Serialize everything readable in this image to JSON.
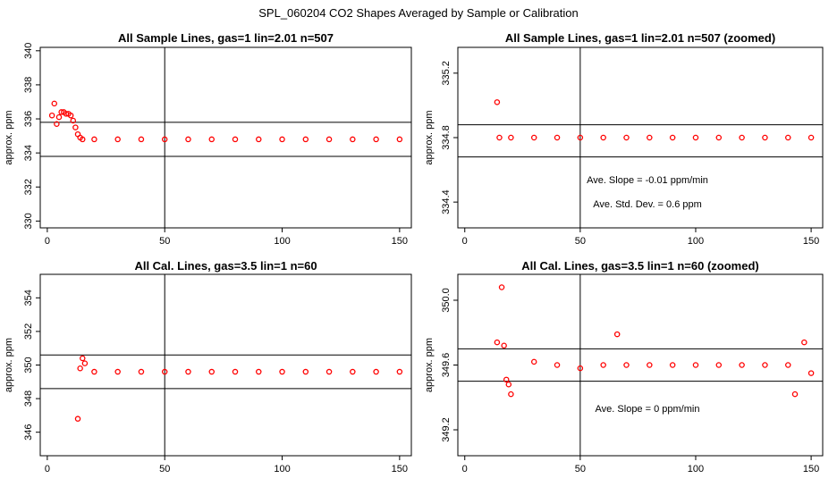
{
  "figure_title": "SPL_060204  CO2 Shapes Averaged by Sample or Calibration",
  "chart_data": [
    {
      "type": "scatter",
      "title": "All Sample Lines, gas=1 lin=2.01 n=507",
      "ylabel": "approx. ppm",
      "xlabel": "",
      "xlim": [
        -3,
        155
      ],
      "ylim": [
        329.6,
        340.2
      ],
      "xticks": [
        0,
        50,
        100,
        150
      ],
      "yticks": [
        330,
        332,
        334,
        336,
        338,
        340
      ],
      "vline": 50,
      "hlines": [
        333.8,
        335.8
      ],
      "series_color": "#ff0000",
      "x": [
        2,
        3,
        4,
        5,
        6,
        7,
        8,
        9,
        10,
        11,
        12,
        13,
        14,
        15,
        20,
        30,
        40,
        50,
        60,
        70,
        80,
        90,
        100,
        110,
        120,
        130,
        140,
        150
      ],
      "y": [
        336.2,
        336.9,
        335.7,
        336.1,
        336.4,
        336.4,
        336.3,
        336.3,
        336.2,
        335.9,
        335.5,
        335.1,
        334.9,
        334.8,
        334.8,
        334.8,
        334.8,
        334.8,
        334.8,
        334.8,
        334.8,
        334.8,
        334.8,
        334.8,
        334.8,
        334.8,
        334.8,
        334.8
      ],
      "annotations": []
    },
    {
      "type": "scatter",
      "title": "All Sample Lines, gas=1 lin=2.01 n=507 (zoomed)",
      "ylabel": "approx. ppm",
      "xlabel": "",
      "xlim": [
        -3,
        155
      ],
      "ylim": [
        334.24,
        335.36
      ],
      "xticks": [
        0,
        50,
        100,
        150
      ],
      "yticks": [
        334.4,
        334.8,
        335.2
      ],
      "vline": 50,
      "hlines": [
        334.68,
        334.88
      ],
      "series_color": "#ff0000",
      "x": [
        14,
        15,
        20,
        30,
        40,
        50,
        60,
        70,
        80,
        90,
        100,
        110,
        120,
        130,
        140,
        150
      ],
      "y": [
        335.02,
        334.8,
        334.8,
        334.8,
        334.8,
        334.8,
        334.8,
        334.8,
        334.8,
        334.8,
        334.8,
        334.8,
        334.8,
        334.8,
        334.8,
        334.8
      ],
      "annotations": [
        "Ave. Slope =  -0.01  ppm/min",
        "Ave. Std. Dev. =  0.6  ppm"
      ]
    },
    {
      "type": "scatter",
      "title": "All Cal. Lines, gas=3.5 lin=1 n=60",
      "ylabel": "approx. ppm",
      "xlabel": "",
      "xlim": [
        -3,
        155
      ],
      "ylim": [
        344.6,
        355.4
      ],
      "xticks": [
        0,
        50,
        100,
        150
      ],
      "yticks": [
        346,
        348,
        350,
        352,
        354
      ],
      "vline": 50,
      "hlines": [
        348.6,
        350.6
      ],
      "series_color": "#ff0000",
      "x": [
        13,
        14,
        15,
        16,
        20,
        30,
        40,
        50,
        60,
        70,
        80,
        90,
        100,
        110,
        120,
        130,
        140,
        150
      ],
      "y": [
        346.8,
        349.8,
        350.4,
        350.1,
        349.6,
        349.6,
        349.6,
        349.6,
        349.6,
        349.6,
        349.6,
        349.6,
        349.6,
        349.6,
        349.6,
        349.6,
        349.6,
        349.6
      ],
      "annotations": []
    },
    {
      "type": "scatter",
      "title": "All Cal. Lines, gas=3.5 lin=1 n=60 (zoomed)",
      "ylabel": "approx. ppm",
      "xlabel": "",
      "xlim": [
        -3,
        155
      ],
      "ylim": [
        349.04,
        350.16
      ],
      "xticks": [
        0,
        50,
        100,
        150
      ],
      "yticks": [
        349.2,
        349.6,
        350.0
      ],
      "vline": 50,
      "hlines": [
        349.5,
        349.7
      ],
      "series_color": "#ff0000",
      "x": [
        14,
        16,
        17,
        18,
        19,
        20,
        30,
        40,
        50,
        60,
        66,
        70,
        80,
        90,
        100,
        110,
        120,
        130,
        140,
        143,
        147,
        150
      ],
      "y": [
        349.74,
        350.08,
        349.72,
        349.51,
        349.48,
        349.42,
        349.62,
        349.6,
        349.58,
        349.6,
        349.79,
        349.6,
        349.6,
        349.6,
        349.6,
        349.6,
        349.6,
        349.6,
        349.6,
        349.42,
        349.74,
        349.55
      ],
      "annotations": [
        "Ave. Slope =  0  ppm/min"
      ]
    }
  ]
}
